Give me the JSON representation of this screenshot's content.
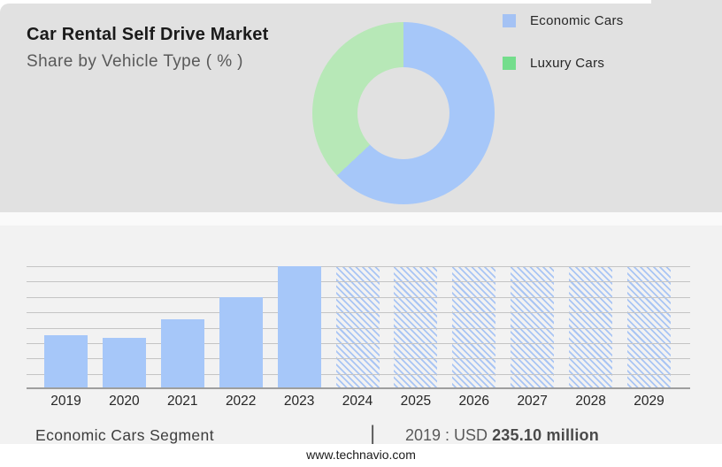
{
  "header": {
    "title": "Car Rental Self Drive Market",
    "subtitle": "Share by Vehicle Type ( % )"
  },
  "colors": {
    "panel_gray": "#e1e1e1",
    "section_gray": "#f2f2f2",
    "economic_blue": "#a6c7f9",
    "luxury_green_legend": "#74dd8c",
    "luxury_green_donut": "#b7e8b7",
    "hatch_blue": "#a9c5f4"
  },
  "donut": {
    "legend": [
      {
        "label": "Economic Cars",
        "color": "#a4c2f4"
      },
      {
        "label": "Luxury Cars",
        "color": "#74dd8c"
      }
    ]
  },
  "chart_data": [
    {
      "type": "pie",
      "subtype": "donut",
      "labels": [
        "Economic Cars",
        "Luxury Cars"
      ],
      "values": [
        63,
        37
      ],
      "unit": "%",
      "colors": [
        "#a6c7f9",
        "#b7e8b7"
      ],
      "start_angle_deg": 0,
      "direction": "clockwise",
      "legend_position": "right",
      "note": "no numeric data labels shown; shares estimated from arc angles"
    },
    {
      "type": "bar",
      "categories": [
        "2019",
        "2020",
        "2021",
        "2022",
        "2023",
        "2024",
        "2025",
        "2026",
        "2027",
        "2028",
        "2029"
      ],
      "values": [
        44,
        42,
        57,
        75,
        100,
        100,
        100,
        100,
        100,
        100,
        100
      ],
      "value_scale": "relative bar height, 2023 = 100 (y-axis has no tick labels)",
      "forecast_categories": [
        "2024",
        "2025",
        "2026",
        "2027",
        "2028",
        "2029"
      ],
      "forecast_style": "diagonal-hatch",
      "grid": "horizontal",
      "gridline_count": 8,
      "bar_color": "#a6c7f9",
      "hatch_color": "#a9c5f4",
      "xlabel": "",
      "ylabel": ""
    }
  ],
  "footer": {
    "segment_label": "Economic Cars Segment",
    "separator": "|",
    "value_prefix": "2019 : USD",
    "value_bold": "235.10 million",
    "website": "www.technavio.com"
  }
}
